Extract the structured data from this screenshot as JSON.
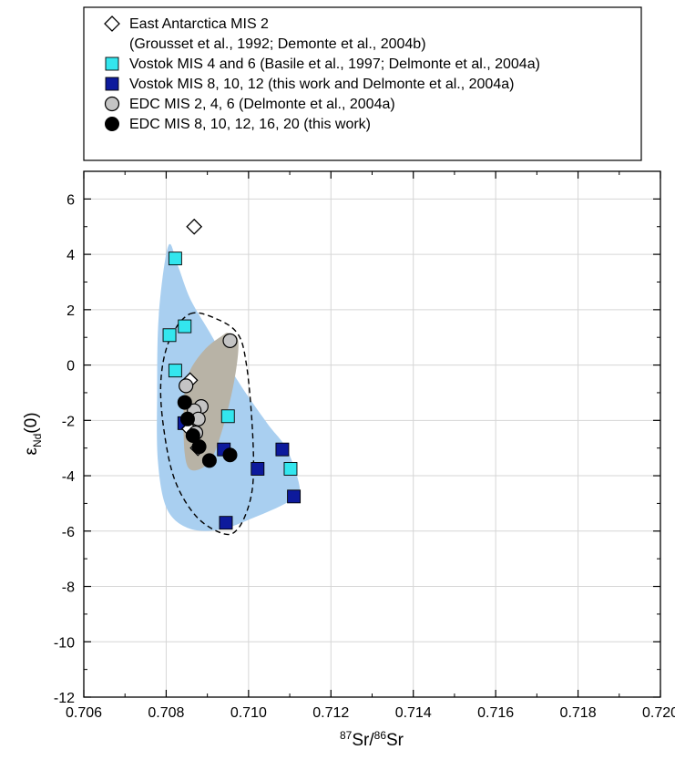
{
  "chart_data": {
    "type": "scatter",
    "xlabel_parts": [
      "87",
      "Sr/",
      "86",
      "Sr"
    ],
    "ylabel_parts": [
      "ε",
      "Nd",
      "(0)"
    ],
    "xlim": [
      0.706,
      0.72
    ],
    "ylim": [
      -12,
      7
    ],
    "x_ticks": [
      "0.706",
      "0.708",
      "0.710",
      "0.712",
      "0.714",
      "0.716",
      "0.718",
      "0.720"
    ],
    "y_ticks": [
      "-12",
      "-10",
      "-8",
      "-6",
      "-4",
      "-2",
      "0",
      "2",
      "4",
      "6"
    ],
    "grid": true,
    "legend": {
      "placement": "top",
      "entries": [
        {
          "marker": "diamond-open",
          "lines": [
            "East Antarctica MIS 2",
            "(Grousset et al., 1992; Demonte et al., 2004b)"
          ]
        },
        {
          "marker": "square-cyan",
          "lines": [
            "Vostok MIS 4 and 6 (Basile et al., 1997; Delmonte et al., 2004a)"
          ]
        },
        {
          "marker": "square-navy",
          "lines": [
            "Vostok MIS 8, 10, 12 (this work and Delmonte et al., 2004a)"
          ]
        },
        {
          "marker": "circle-gray",
          "lines": [
            "EDC MIS 2, 4, 6 (Delmonte et al., 2004a)"
          ]
        },
        {
          "marker": "circle-black",
          "lines": [
            "EDC MIS 8, 10, 12, 16, 20 (this work)"
          ]
        }
      ]
    },
    "colors": {
      "cyan": "#33e6ee",
      "navy": "#0d1a9c",
      "gray_fill": "#b8b3a6",
      "gray_marker": "#c4c4c4",
      "blue_region": "#a9cff0",
      "black": "#000000"
    },
    "regions": [
      {
        "name": "Vostok field",
        "style": "filled-blue",
        "points": [
          [
            0.70805,
            4.3
          ],
          [
            0.70828,
            3.6
          ],
          [
            0.70858,
            2.4
          ],
          [
            0.70905,
            1.2
          ],
          [
            0.70975,
            -0.6
          ],
          [
            0.71045,
            -2.1
          ],
          [
            0.71095,
            -3.1
          ],
          [
            0.71125,
            -4.6
          ],
          [
            0.7109,
            -5.0
          ],
          [
            0.71015,
            -5.5
          ],
          [
            0.7093,
            -5.95
          ],
          [
            0.70855,
            -5.9
          ],
          [
            0.70802,
            -5.2
          ],
          [
            0.7078,
            -3.5
          ],
          [
            0.70778,
            -1.0
          ],
          [
            0.70782,
            1.8
          ]
        ]
      },
      {
        "name": "EDC MIS 2, 4, 6 field",
        "style": "filled-gray",
        "points": [
          [
            0.70952,
            1.15
          ],
          [
            0.70975,
            0.85
          ],
          [
            0.70965,
            -0.6
          ],
          [
            0.70935,
            -2.4
          ],
          [
            0.70905,
            -3.5
          ],
          [
            0.70862,
            -3.8
          ],
          [
            0.70845,
            -3.2
          ],
          [
            0.70843,
            -1.4
          ],
          [
            0.70855,
            -0.3
          ],
          [
            0.70893,
            0.55
          ],
          [
            0.70935,
            1.05
          ]
        ]
      },
      {
        "name": "EDC MIS 8-20 field",
        "style": "dashed",
        "points": [
          [
            0.70858,
            1.85
          ],
          [
            0.70925,
            1.65
          ],
          [
            0.70975,
            1.1
          ],
          [
            0.70995,
            0.0
          ],
          [
            0.71008,
            -2.0
          ],
          [
            0.71012,
            -3.9
          ],
          [
            0.71002,
            -5.0
          ],
          [
            0.70975,
            -5.9
          ],
          [
            0.7094,
            -6.1
          ],
          [
            0.70875,
            -5.5
          ],
          [
            0.70822,
            -4.2
          ],
          [
            0.70795,
            -2.4
          ],
          [
            0.70787,
            -0.6
          ],
          [
            0.70808,
            0.9
          ]
        ]
      }
    ],
    "series": [
      {
        "marker": "diamond-open",
        "points": [
          [
            0.70868,
            5.0
          ],
          [
            0.70858,
            -0.55
          ],
          [
            0.70856,
            -2.3
          ],
          [
            0.70877,
            -3.0
          ]
        ]
      },
      {
        "marker": "square-cyan",
        "points": [
          [
            0.70822,
            3.85
          ],
          [
            0.70845,
            1.4
          ],
          [
            0.70808,
            1.08
          ],
          [
            0.70822,
            -0.2
          ],
          [
            0.7095,
            -1.85
          ],
          [
            0.71102,
            -3.75
          ]
        ]
      },
      {
        "marker": "square-navy",
        "points": [
          [
            0.70844,
            -2.1
          ],
          [
            0.7094,
            -3.05
          ],
          [
            0.71022,
            -3.75
          ],
          [
            0.71082,
            -3.05
          ],
          [
            0.7111,
            -4.75
          ],
          [
            0.70945,
            -5.7
          ]
        ]
      },
      {
        "marker": "circle-gray",
        "points": [
          [
            0.70955,
            0.88
          ],
          [
            0.70848,
            -0.75
          ],
          [
            0.70885,
            -1.5
          ],
          [
            0.70868,
            -1.65
          ],
          [
            0.70878,
            -1.95
          ],
          [
            0.70872,
            -2.45
          ]
        ]
      },
      {
        "marker": "circle-black",
        "points": [
          [
            0.70845,
            -1.35
          ],
          [
            0.70852,
            -1.95
          ],
          [
            0.70865,
            -2.55
          ],
          [
            0.7088,
            -2.95
          ],
          [
            0.70905,
            -3.45
          ],
          [
            0.70955,
            -3.25
          ]
        ]
      }
    ]
  }
}
